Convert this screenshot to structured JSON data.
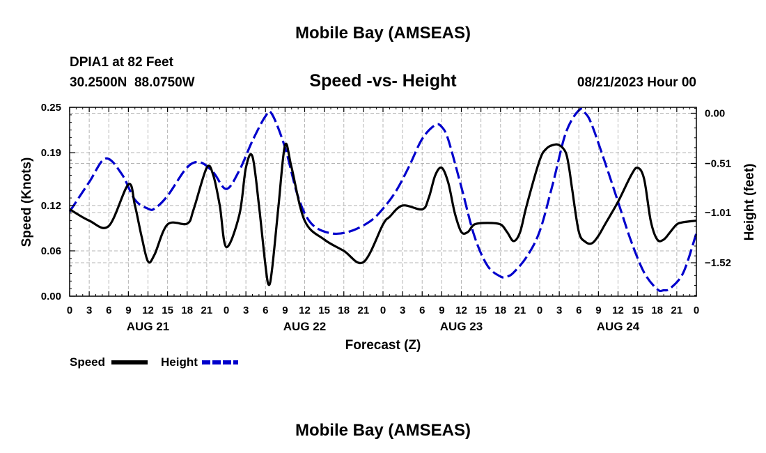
{
  "page_title": "Mobile Bay (AMSEAS)",
  "footer_title": "Mobile Bay (AMSEAS)",
  "station": {
    "name": "DPIA1 at 82 Feet",
    "coords": "30.2500N  88.0750W"
  },
  "issued": "08/21/2023 Hour 00",
  "chart_data": {
    "type": "line",
    "title": "Speed -vs- Height",
    "xlabel": "Forecast (Z)",
    "ylabel_left": "Speed (Knots)",
    "ylabel_right": "Height (feet)",
    "x_range": [
      0,
      96
    ],
    "x_unit": "hours since 08/21/2023 00Z",
    "x_tick_labels": [
      "0",
      "3",
      "6",
      "9",
      "12",
      "15",
      "18",
      "21",
      "0",
      "3",
      "6",
      "9",
      "12",
      "15",
      "18",
      "21",
      "0",
      "3",
      "6",
      "9",
      "12",
      "15",
      "18",
      "21",
      "0",
      "3",
      "6",
      "9",
      "12",
      "15",
      "18",
      "21",
      "0"
    ],
    "day_labels": [
      "AUG 21",
      "AUG 22",
      "AUG 23",
      "AUG 24"
    ],
    "y_left": {
      "range": [
        0,
        0.25
      ],
      "ticks": [
        0,
        0.06,
        0.12,
        0.19,
        0.25
      ],
      "tick_labels": [
        "0.00",
        "0.06",
        "0.12",
        "0.19",
        "0.25"
      ]
    },
    "y_right": {
      "range": [
        -1.86,
        0.06
      ],
      "ticks": [
        0,
        -0.51,
        -1.01,
        -1.52
      ],
      "tick_labels": [
        "0.00",
        "−0.51",
        "−1.01",
        "−1.52"
      ]
    },
    "grid": true,
    "legend": [
      "Speed",
      "Height"
    ],
    "series": [
      {
        "name": "Speed",
        "axis": "left",
        "color": "#000000",
        "style": "solid",
        "x": [
          0,
          3,
          6,
          9,
          10,
          11,
          12,
          13,
          15,
          18,
          19,
          21,
          22,
          23,
          24,
          26,
          27,
          28,
          29,
          30,
          30.5,
          31,
          32,
          33,
          34,
          36,
          39,
          42,
          45,
          48,
          49,
          51,
          54,
          55,
          56,
          57,
          58,
          59,
          60,
          61,
          62,
          64,
          66,
          67,
          68,
          69,
          70,
          72,
          73,
          74,
          75,
          76,
          76.5,
          77,
          78,
          79,
          80,
          81,
          82,
          84,
          86,
          87,
          88,
          89,
          90,
          91,
          92,
          93,
          94,
          96
        ],
        "y": [
          0.115,
          0.1,
          0.093,
          0.148,
          0.12,
          0.08,
          0.046,
          0.055,
          0.095,
          0.096,
          0.115,
          0.17,
          0.16,
          0.12,
          0.065,
          0.108,
          0.17,
          0.185,
          0.12,
          0.04,
          0.015,
          0.035,
          0.12,
          0.2,
          0.17,
          0.1,
          0.075,
          0.06,
          0.045,
          0.095,
          0.105,
          0.12,
          0.115,
          0.13,
          0.16,
          0.17,
          0.15,
          0.11,
          0.085,
          0.085,
          0.095,
          0.097,
          0.095,
          0.085,
          0.073,
          0.085,
          0.12,
          0.18,
          0.195,
          0.2,
          0.2,
          0.19,
          0.17,
          0.14,
          0.085,
          0.072,
          0.07,
          0.08,
          0.095,
          0.125,
          0.16,
          0.17,
          0.155,
          0.1,
          0.075,
          0.075,
          0.085,
          0.095,
          0.098,
          0.1
        ]
      },
      {
        "name": "Height",
        "axis": "right",
        "color": "#0000cc",
        "style": "dashed",
        "x": [
          0,
          3,
          5.5,
          8,
          10,
          12,
          13,
          15,
          18,
          20,
          22,
          24,
          26,
          28,
          30,
          31,
          33,
          35,
          37,
          40,
          43,
          46,
          48,
          50,
          52,
          54,
          56,
          57,
          58,
          60,
          62,
          64,
          66,
          67,
          68,
          70,
          72,
          74,
          76,
          78,
          79,
          80,
          82,
          84,
          86,
          88,
          90,
          91,
          92,
          94,
          96
        ],
        "y": [
          -1.0,
          -0.7,
          -0.46,
          -0.62,
          -0.88,
          -0.97,
          -0.97,
          -0.84,
          -0.55,
          -0.5,
          -0.6,
          -0.77,
          -0.58,
          -0.28,
          -0.03,
          -0.01,
          -0.35,
          -0.85,
          -1.12,
          -1.22,
          -1.2,
          -1.1,
          -0.97,
          -0.79,
          -0.54,
          -0.26,
          -0.12,
          -0.14,
          -0.27,
          -0.75,
          -1.25,
          -1.55,
          -1.66,
          -1.66,
          -1.62,
          -1.46,
          -1.2,
          -0.72,
          -0.2,
          0.03,
          0.0,
          -0.12,
          -0.5,
          -0.9,
          -1.3,
          -1.62,
          -1.79,
          -1.8,
          -1.78,
          -1.62,
          -1.22
        ]
      }
    ]
  }
}
